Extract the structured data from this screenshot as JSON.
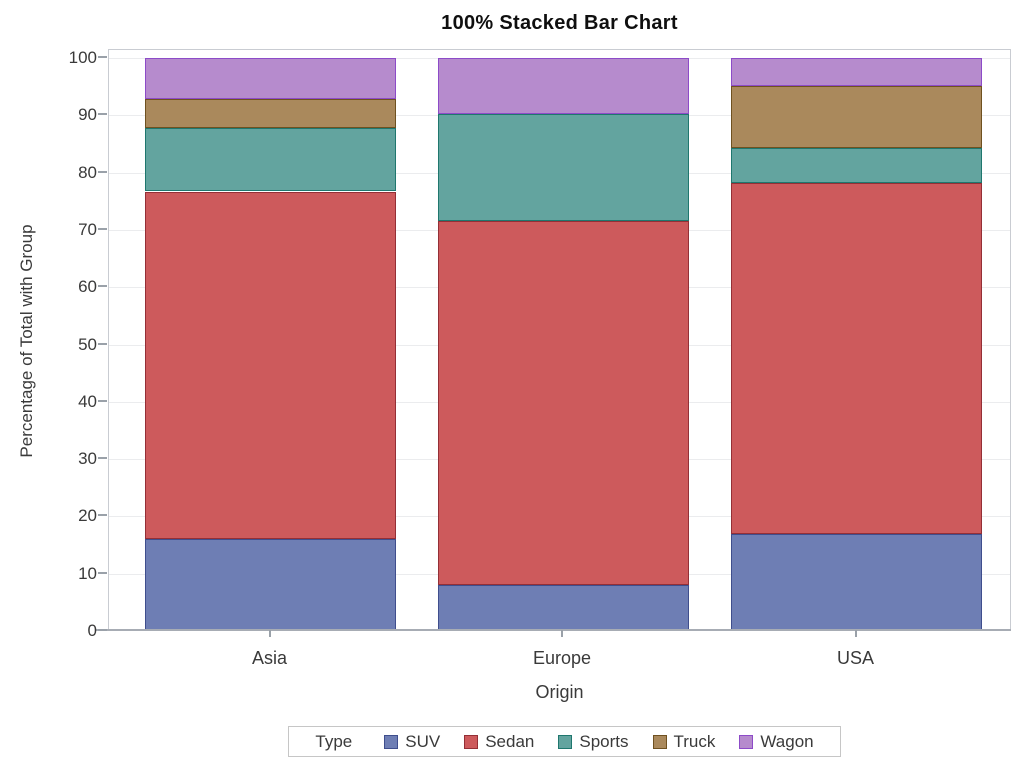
{
  "chart_data": {
    "type": "bar",
    "variant": "100-percent-stacked",
    "title": "100% Stacked Bar Chart",
    "xlabel": "Origin",
    "ylabel": "Percentage of Total with Group",
    "categories": [
      "Asia",
      "Europe",
      "USA"
    ],
    "ylim": [
      0,
      100
    ],
    "yticks": [
      0,
      10,
      20,
      30,
      40,
      50,
      60,
      70,
      80,
      90,
      100
    ],
    "grid": true,
    "legend": {
      "title": "Type",
      "position": "bottom"
    },
    "series": [
      {
        "name": "SUV",
        "fill": "#6e7eb4",
        "stroke": "#3f4e8d",
        "values": [
          16.1,
          8.1,
          17.0
        ]
      },
      {
        "name": "Sedan",
        "fill": "#cd5a5c",
        "stroke": "#942f36",
        "values": [
          60.6,
          63.4,
          61.2
        ]
      },
      {
        "name": "Sports",
        "fill": "#63a49f",
        "stroke": "#1f776e",
        "values": [
          11.0,
          18.7,
          6.1
        ]
      },
      {
        "name": "Truck",
        "fill": "#aa895c",
        "stroke": "#6f5120",
        "values": [
          5.2,
          0.0,
          10.9
        ]
      },
      {
        "name": "Wagon",
        "fill": "#b68bcd",
        "stroke": "#8d4bc8",
        "values": [
          7.1,
          9.8,
          4.8
        ]
      }
    ],
    "colors": {
      "background": "#ffffff",
      "grid": "#ebecee",
      "frame": "#c9ccd2",
      "axis": "#a7acb4",
      "text": "#3a3a3a",
      "title": "#0f0f0f"
    }
  }
}
